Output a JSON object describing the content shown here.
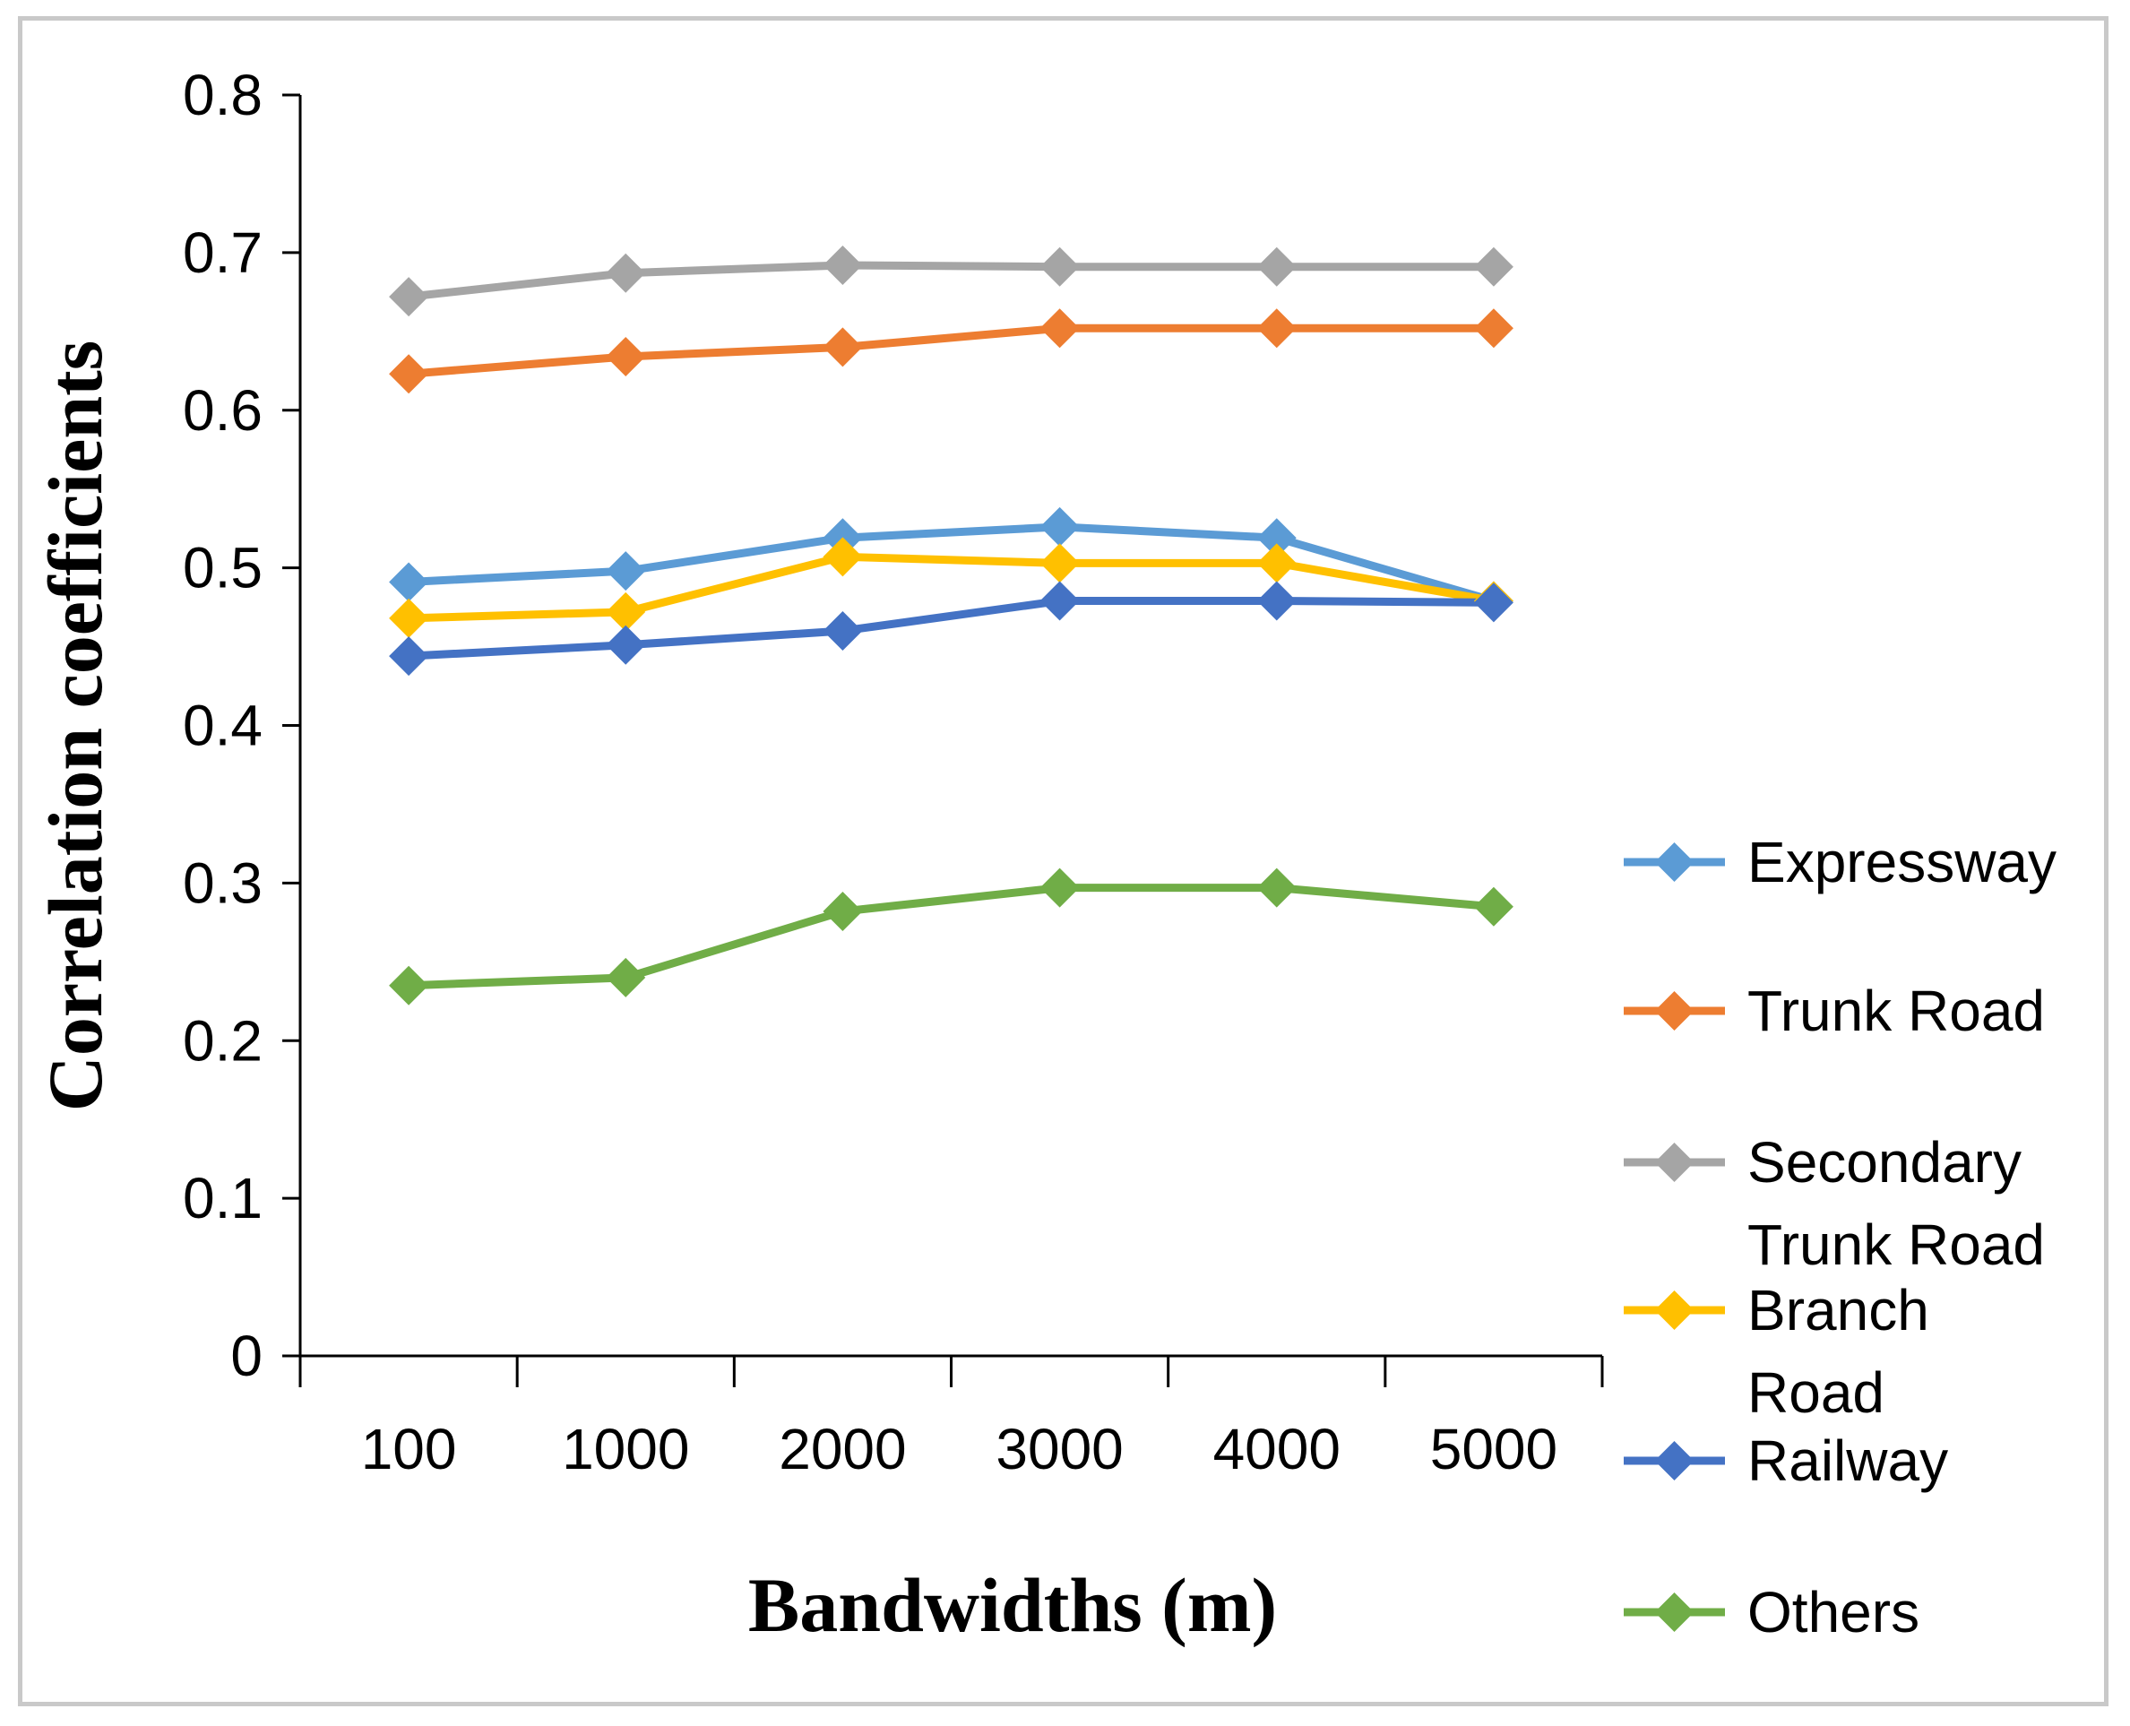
{
  "chart_data": {
    "type": "line",
    "title": "",
    "xlabel": "Bandwidths (m)",
    "ylabel": "Correlation coefficients",
    "categories": [
      "100",
      "1000",
      "2000",
      "3000",
      "4000",
      "5000"
    ],
    "ylim": [
      0,
      0.8
    ],
    "yticks": [
      "0",
      "0.1",
      "0.2",
      "0.3",
      "0.4",
      "0.5",
      "0.6",
      "0.7",
      "0.8"
    ],
    "grid": false,
    "legend_position": "right",
    "series": [
      {
        "name": "Expressway",
        "color": "#5B9BD5",
        "values": [
          0.491,
          0.498,
          0.519,
          0.526,
          0.519,
          0.479
        ]
      },
      {
        "name": "Trunk Road",
        "color": "#ED7D31",
        "values": [
          0.623,
          0.634,
          0.64,
          0.652,
          0.652,
          0.652
        ]
      },
      {
        "name": "Secondary Trunk Road",
        "color": "#A5A5A5",
        "values": [
          0.672,
          0.687,
          0.692,
          0.691,
          0.691,
          0.691
        ]
      },
      {
        "name": "Branch Road",
        "color": "#FFC000",
        "values": [
          0.468,
          0.472,
          0.507,
          0.503,
          0.503,
          0.479
        ]
      },
      {
        "name": "Railway",
        "color": "#4472C4",
        "values": [
          0.444,
          0.451,
          0.46,
          0.479,
          0.479,
          0.478
        ]
      },
      {
        "name": "Others",
        "color": "#70AD47",
        "values": [
          0.235,
          0.24,
          0.282,
          0.297,
          0.297,
          0.285
        ]
      }
    ]
  }
}
